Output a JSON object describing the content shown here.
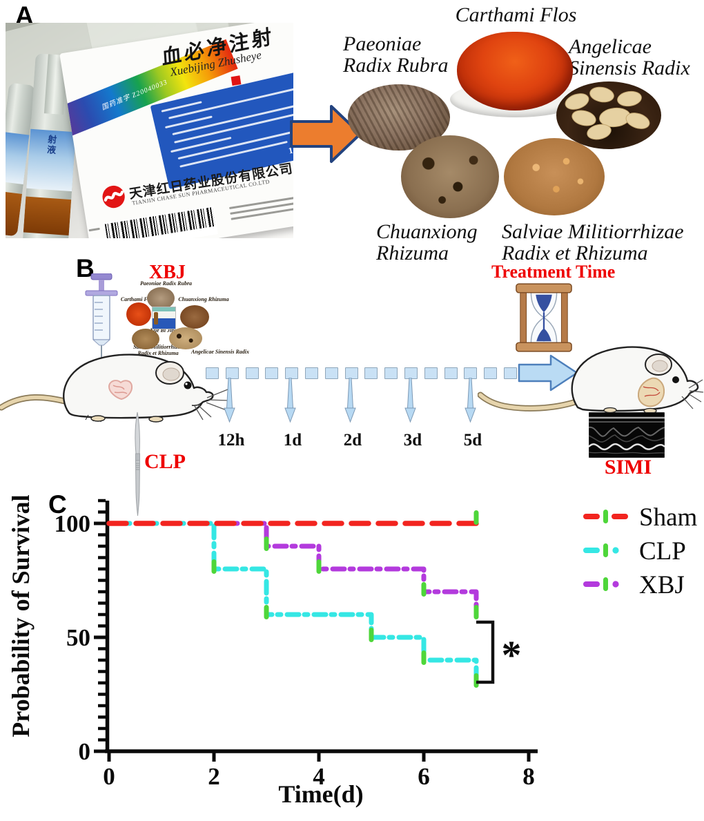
{
  "panels": {
    "a": {
      "label": "A",
      "photo": {
        "box_title_cn": "血必净注射",
        "box_title_pinyin": "Xuebijing Zhusheye",
        "approval_no": "国药准字 Z20040033",
        "spec": "10ml×5 支",
        "company_cn": "天津红日药业股份有限公司",
        "company_en": "TIANJIN CHASE SUN PHARMACEUTICAL CO.LTD",
        "ampoule_label": "射液"
      },
      "herbs": [
        {
          "id": "carthami",
          "name": "Carthami Flos"
        },
        {
          "id": "paeoniae",
          "line1": "Paeoniae",
          "line2": "Radix Rubra"
        },
        {
          "id": "angelicae",
          "line1": "Angelicae",
          "line2": "Sinensis Radix"
        },
        {
          "id": "chuanxiong",
          "line1": "Chuanxiong",
          "line2": "Rhizuma"
        },
        {
          "id": "salviae",
          "line1": "Salviae Militiorrhizae",
          "line2": "Radix et Rhizuma"
        }
      ]
    },
    "b": {
      "label": "B",
      "xbj_label": "XBJ",
      "clp_label": "CLP",
      "treatment_time_label": "Treatment Time",
      "simi_label": "SIMI",
      "timepoints": [
        "12h",
        "1d",
        "2d",
        "3d",
        "5d"
      ],
      "mini_ingredients": {
        "paeoniae": "Paeoniae Radix Rubra",
        "carthami": "Carthami Flos",
        "chuanxiong": "Chuanxiong Rhizuma",
        "center": "Xue Bi Jing",
        "salviae_line1": "Salviae Militiorrhizae",
        "salviae_line2": "Radix et Rhizuma",
        "angelicae": "Angelicae Sinensis Radix"
      },
      "accent_red": "#ee0000"
    },
    "c": {
      "label": "C"
    }
  },
  "chart_data": {
    "type": "line",
    "subtype": "kaplan_meier_step",
    "title": "",
    "xlabel": "Time(d)",
    "ylabel": "Probability of Survival",
    "xlim": [
      0,
      8
    ],
    "ylim": [
      0,
      110
    ],
    "xticks": [
      0,
      2,
      4,
      6,
      8
    ],
    "yticks": [
      0,
      50,
      100
    ],
    "minor_tick_step_y": 5,
    "grid": false,
    "legend_position": "upper-right-outside",
    "marker_color": "#4ed63a",
    "series": [
      {
        "name": "Sham",
        "color": "#f2241f",
        "dash": "dash",
        "points": [
          [
            0,
            100
          ],
          [
            7,
            100
          ]
        ]
      },
      {
        "name": "CLP",
        "color": "#35e7e4",
        "dash": "dash-dot",
        "points": [
          [
            0,
            100
          ],
          [
            2,
            100
          ],
          [
            2,
            80
          ],
          [
            3,
            80
          ],
          [
            3,
            60
          ],
          [
            5,
            60
          ],
          [
            5,
            50
          ],
          [
            6,
            50
          ],
          [
            6,
            40
          ],
          [
            7,
            40
          ],
          [
            7,
            30
          ]
        ]
      },
      {
        "name": "XBJ",
        "color": "#b33add",
        "dash": "dash-dot",
        "points": [
          [
            0,
            100
          ],
          [
            3,
            100
          ],
          [
            3,
            90
          ],
          [
            4,
            90
          ],
          [
            4,
            80
          ],
          [
            6,
            80
          ],
          [
            6,
            70
          ],
          [
            7,
            70
          ],
          [
            7,
            60
          ]
        ]
      }
    ],
    "significance": {
      "label": "*",
      "compares": [
        "XBJ",
        "CLP"
      ],
      "x": 7
    }
  }
}
